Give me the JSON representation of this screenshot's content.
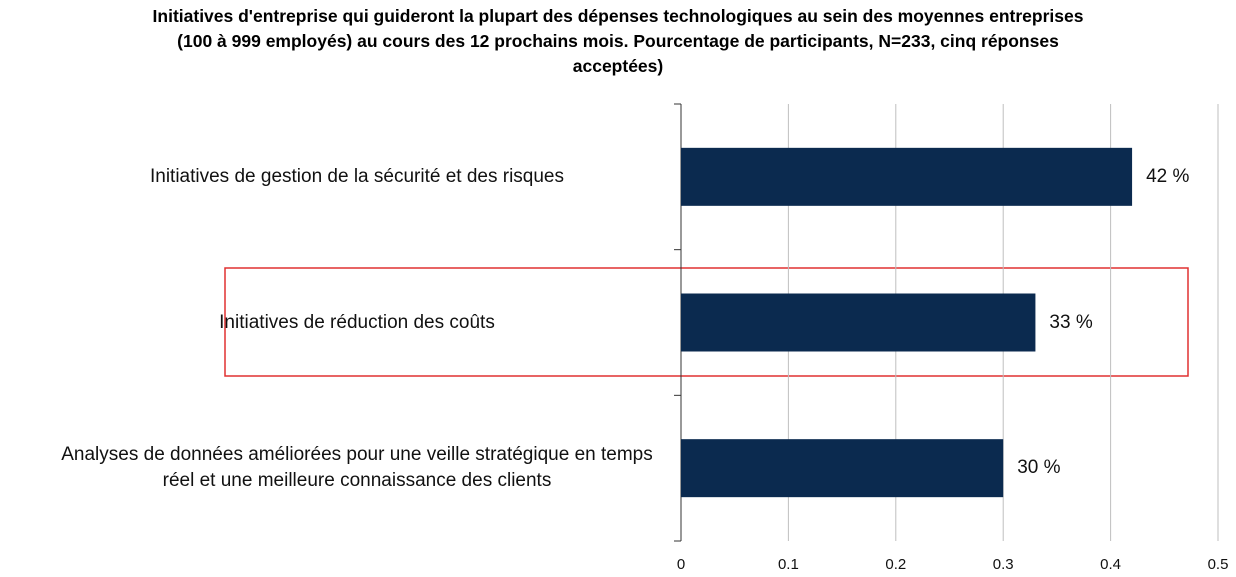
{
  "chart_data": {
    "type": "bar",
    "orientation": "horizontal",
    "title": "Initiatives d'entreprise qui guideront la plupart des dépenses technologiques au sein des moyennes entreprises (100 à 999 employés) au cours des 12 prochains mois. Pourcentage de participants, N=233, cinq réponses acceptées)",
    "categories": [
      "Initiatives de gestion de la sécurité et des risques",
      "Initiatives de réduction des coûts",
      "Analyses de données améliorées pour une veille stratégique en temps réel et une meilleure connaissance des clients"
    ],
    "values": [
      0.42,
      0.33,
      0.3
    ],
    "value_labels": [
      "42 %",
      "33 %",
      "30 %"
    ],
    "color": "#0b2a4f",
    "xlim": [
      0,
      0.5
    ],
    "xticks": [
      0,
      0.1,
      0.2,
      0.3,
      0.4,
      0.5
    ],
    "grid": true
  }
}
